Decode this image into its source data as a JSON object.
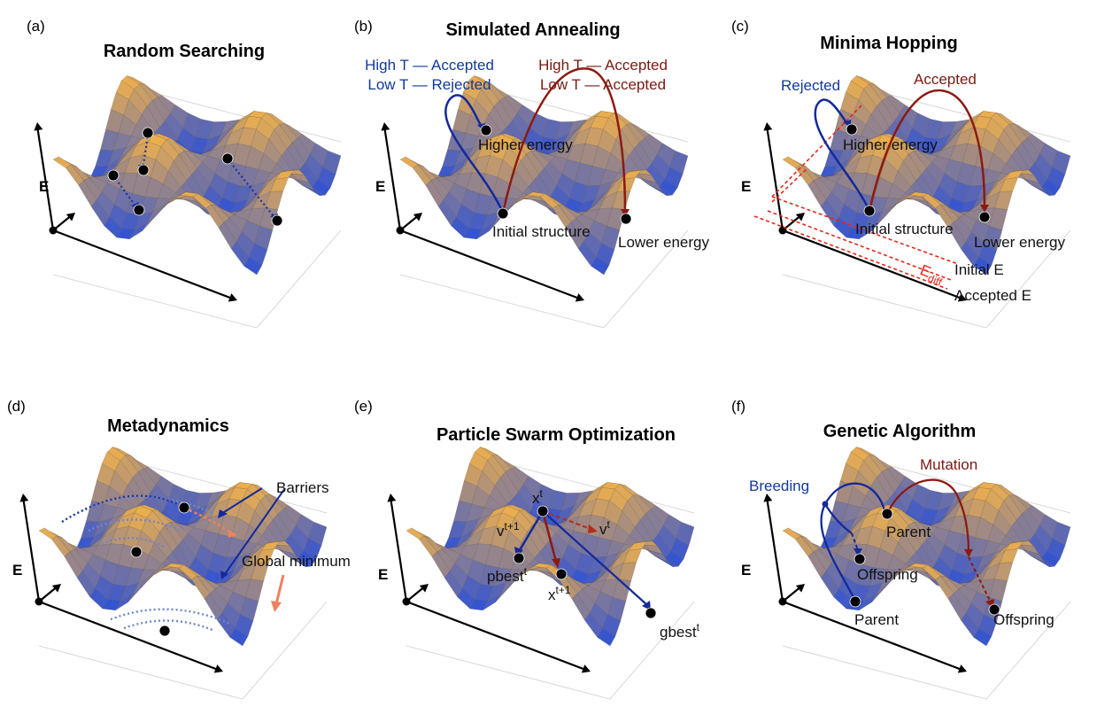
{
  "colors": {
    "surface_high": "#f2b24a",
    "surface_low": "#2a4fd8",
    "accent_blue": "#0f2d9e",
    "accent_red": "#8b1b12",
    "accent_bright_red": "#e8261a",
    "salmon": "#f08060"
  },
  "axis_label": "E",
  "panels": [
    {
      "id": "a",
      "letter": "(a)",
      "title": "Random Searching"
    },
    {
      "id": "b",
      "letter": "(b)",
      "title": "Simulated Annealing",
      "blue_line1": "High T — Accepted",
      "blue_line2": "Low T — Rejected",
      "red_line1": "High T — Accepted",
      "red_line2": "Low T — Accepted",
      "higher": "Higher energy",
      "initial": "Initial structure",
      "lower": "Lower energy"
    },
    {
      "id": "c",
      "letter": "(c)",
      "title": "Minima Hopping",
      "rejected": "Rejected",
      "accepted": "Accepted",
      "higher": "Higher energy",
      "initial": "Initial structure",
      "lower": "Lower energy",
      "ediff": "E",
      "ediff_sub": "diff",
      "initial_e": "Initial E",
      "accepted_e": "Accepted E"
    },
    {
      "id": "d",
      "letter": "(d)",
      "title": "Metadynamics",
      "barriers": "Barriers",
      "global_min": "Global minimum"
    },
    {
      "id": "e",
      "letter": "(e)",
      "title": "Particle Swarm Optimization",
      "xt": "x",
      "xt_sup": "t",
      "vt1": "v",
      "vt1_sup": "t+1",
      "vt": "v",
      "vt_sup": "t",
      "pbest": "pbest",
      "pbest_sup": "t",
      "xt1": "x",
      "xt1_sup": "t+1",
      "gbest": "gbest",
      "gbest_sup": "t"
    },
    {
      "id": "f",
      "letter": "(f)",
      "title": "Genetic Algorithm",
      "breeding": "Breeding",
      "mutation": "Mutation",
      "parent1": "Parent",
      "offspring1": "Offspring",
      "parent2": "Parent",
      "offspring2": "Offspring"
    }
  ]
}
